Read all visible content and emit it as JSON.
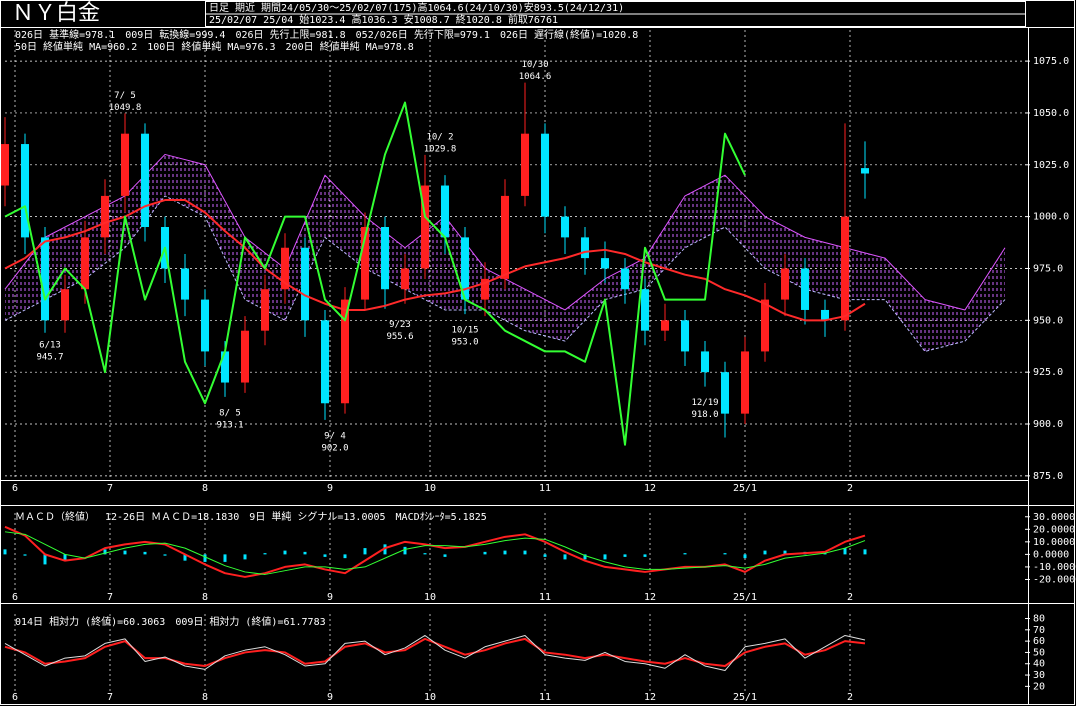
{
  "chart_data": [
    {
      "type": "candlestick",
      "title": "ＮＹ白金",
      "info": [
        "日足 期近 期間24/05/30～25/02/07(175)高1064.6(24/10/30)安893.5(24/12/31)",
        "25/02/07 25/04 始1023.4 高1036.3 安1008.7 終1020.8 前取76761"
      ],
      "legend": [
        {
          "text": "026日 基準線=978.1",
          "color": "#00ffff"
        },
        {
          "text": "009日 転換線=999.4",
          "color": "#ff3366"
        },
        {
          "text": "026日 先行上限=981.8",
          "color": "#ff44ff"
        },
        {
          "text": "052/026日 先行下限=979.1",
          "color": "#ff44ff"
        },
        {
          "text": "026日 遅行線(終値)=1020.8",
          "color": "#33ff33"
        },
        {
          "text": "50日 終値単純 MA=960.2",
          "color": "#ff3333"
        },
        {
          "text": "100日 終値単純 MA=976.3",
          "color": "#00ffff"
        },
        {
          "text": "200日 終値単純 MA=978.8",
          "color": "#33ff33"
        }
      ],
      "x": [
        0,
        4,
        8,
        12,
        16,
        20,
        24,
        28,
        32,
        36,
        40,
        44,
        48,
        52,
        56,
        60,
        64,
        68,
        72,
        76,
        80,
        84,
        88,
        92,
        96,
        100,
        104,
        108,
        112,
        116,
        120,
        124,
        128,
        132,
        136,
        140,
        144,
        148,
        152,
        156,
        160,
        164,
        168,
        172
      ],
      "open": [
        1015,
        1035,
        990,
        950,
        965,
        990,
        1010,
        1040,
        995,
        975,
        960,
        935,
        920,
        945,
        965,
        985,
        950,
        910,
        960,
        995,
        965,
        975,
        1015,
        990,
        960,
        970,
        1010,
        1040,
        1000,
        990,
        980,
        975,
        965,
        945,
        950,
        935,
        925,
        905,
        935,
        960,
        975,
        955,
        950,
        1023.4
      ],
      "high": [
        1048,
        1040,
        995,
        972,
        998,
        1018,
        1049.8,
        1045,
        1000,
        982,
        965,
        940,
        952,
        972,
        992,
        990,
        955,
        966,
        1002,
        1000,
        982,
        1029.8,
        1020,
        995,
        978,
        1018,
        1064.6,
        1045,
        1005,
        995,
        988,
        980,
        970,
        958,
        955,
        940,
        930,
        942,
        968,
        982,
        980,
        960,
        1045,
        1036.3
      ],
      "low": [
        1005,
        982,
        944,
        944,
        958,
        982,
        1002,
        988,
        968,
        952,
        928,
        913.1,
        915,
        938,
        958,
        942,
        902,
        905,
        955,
        955.6,
        958,
        970,
        982,
        953,
        952,
        965,
        1005,
        992,
        982,
        972,
        968,
        958,
        938,
        940,
        928,
        918,
        893.5,
        900,
        930,
        952,
        948,
        942,
        945,
        1008.7
      ],
      "close": [
        1035,
        990,
        950,
        965,
        990,
        1010,
        1040,
        995,
        975,
        960,
        935,
        920,
        945,
        965,
        985,
        950,
        910,
        960,
        995,
        965,
        975,
        1015,
        990,
        960,
        970,
        1010,
        1040,
        1000,
        990,
        980,
        975,
        965,
        945,
        950,
        935,
        925,
        905,
        935,
        960,
        975,
        955,
        950,
        1000,
        1020.8
      ],
      "up_color": "#ff2020",
      "down_color": "#00e5ff",
      "series": [
        {
          "color": "#ff2a2a",
          "width": 2,
          "values": [
            975,
            980,
            988,
            990,
            993,
            997,
            1000,
            1005,
            1008,
            1008,
            1002,
            993,
            985,
            975,
            968,
            962,
            958,
            955,
            955,
            957,
            960,
            962,
            963,
            965,
            968,
            972,
            976,
            978,
            980,
            983,
            984,
            982,
            978,
            975,
            972,
            970,
            965,
            962,
            958,
            953,
            950,
            950,
            952,
            958
          ]
        },
        {
          "color": "#33ff33",
          "width": 2,
          "values": [
            1000,
            1005,
            960,
            975,
            965,
            925,
            1000,
            960,
            985,
            930,
            910,
            935,
            990,
            975,
            1000,
            1000,
            960,
            950,
            990,
            1030,
            1055,
            1000,
            990,
            960,
            955,
            945,
            940,
            935,
            935,
            930,
            960,
            890,
            985,
            960,
            960,
            960,
            1040,
            1020,
            null,
            null,
            null,
            null,
            null,
            null
          ]
        }
      ],
      "cloud": {
        "x": [
          0,
          8,
          16,
          24,
          32,
          40,
          48,
          56,
          64,
          72,
          80,
          88,
          96,
          104,
          112,
          120,
          128,
          136,
          144,
          152,
          160,
          168,
          176,
          184,
          192,
          200
        ],
        "span_a": {
          "color": "#dd55ff",
          "values": [
            965,
            990,
            1000,
            1010,
            1030,
            1025,
            990,
            975,
            1020,
            1000,
            985,
            1000,
            975,
            965,
            955,
            970,
            980,
            1010,
            1020,
            1000,
            990,
            985,
            980,
            960,
            955,
            985
          ]
        },
        "span_b": {
          "color": "#bbbbff",
          "values": [
            950,
            960,
            970,
            985,
            1010,
            1000,
            960,
            950,
            990,
            975,
            965,
            955,
            955,
            945,
            940,
            960,
            965,
            985,
            995,
            975,
            965,
            960,
            960,
            935,
            940,
            960
          ]
        }
      },
      "annotations": [
        {
          "date": "6/13",
          "price": 945.7,
          "x": 9,
          "color": "#00ffff",
          "pos": "below"
        },
        {
          "date": "7/ 5",
          "price": 1049.8,
          "x": 24,
          "color": "#ff3333",
          "pos": "above"
        },
        {
          "date": "8/ 5",
          "price": 913.1,
          "x": 45,
          "color": "#00ffff",
          "pos": "below"
        },
        {
          "date": "9/ 4",
          "price": 902,
          "price_label": "902.0",
          "x": 66,
          "color": "#00ffff",
          "pos": "below"
        },
        {
          "date": "9/23",
          "price": 955.6,
          "x": 79,
          "color": "#00ffff",
          "pos": "below"
        },
        {
          "date": "10/ 2",
          "price": 1029.8,
          "x": 87,
          "color": "#ff3333",
          "pos": "above"
        },
        {
          "date": "10/15",
          "price": 953,
          "price_label": "953.0",
          "x": 92,
          "color": "#00ffff",
          "pos": "below"
        },
        {
          "date": "10/30",
          "price": 1064.6,
          "x": 106,
          "color": "#ff3333",
          "pos": "above"
        },
        {
          "date": "12/19",
          "price": 918,
          "price_label": "918.0",
          "x": 140,
          "color": "#00ffff",
          "pos": "below"
        }
      ],
      "xlim": [
        0,
        204
      ],
      "ylim": [
        873,
        1090
      ],
      "yticks": [
        {
          "value": 875,
          "label": "875.0"
        },
        {
          "value": 900,
          "label": "900.0"
        },
        {
          "value": 925,
          "label": "925.0"
        },
        {
          "value": 950,
          "label": "950.0"
        },
        {
          "value": 975,
          "label": "975.0"
        },
        {
          "value": 1000,
          "label": "1000.0"
        },
        {
          "value": 1025,
          "label": "1025.0"
        },
        {
          "value": 1050,
          "label": "1050.0"
        },
        {
          "value": 1075,
          "label": "1075.0"
        }
      ],
      "xticks": [
        {
          "value": 2,
          "label": "6"
        },
        {
          "value": 21,
          "label": "7"
        },
        {
          "value": 40,
          "label": "8"
        },
        {
          "value": 65,
          "label": "9"
        },
        {
          "value": 85,
          "label": "10"
        },
        {
          "value": 108,
          "label": "11"
        },
        {
          "value": 129,
          "label": "12"
        },
        {
          "value": 148,
          "label": "25/1"
        },
        {
          "value": 169,
          "label": "2"
        }
      ],
      "grid": true,
      "xgrid": true
    },
    {
      "type": "macd",
      "legend": [
        {
          "text": "ＭＡＣＤ（終値）",
          "color": "#ffffff"
        },
        {
          "text": "12-26日 ＭＡＣＤ=18.1830",
          "color": "#ff3333"
        },
        {
          "text": "9日 単純 シグナル=13.0005",
          "color": "#33ff33"
        },
        {
          "text": "MACDｵｼﾚｰﾀ=5.1825",
          "color": "#00ffff"
        }
      ],
      "x": [
        0,
        4,
        8,
        12,
        16,
        20,
        24,
        28,
        32,
        36,
        40,
        44,
        48,
        52,
        56,
        60,
        64,
        68,
        72,
        76,
        80,
        84,
        88,
        92,
        96,
        100,
        104,
        108,
        112,
        116,
        120,
        124,
        128,
        132,
        136,
        140,
        144,
        148,
        152,
        156,
        160,
        164,
        168,
        172
      ],
      "series": [
        {
          "color": "#ff2020",
          "width": 2,
          "values": [
            22,
            15,
            0,
            -5,
            -3,
            5,
            8,
            10,
            8,
            0,
            -8,
            -15,
            -18,
            -15,
            -10,
            -8,
            -12,
            -15,
            -5,
            5,
            10,
            8,
            5,
            6,
            10,
            14,
            16,
            10,
            2,
            -5,
            -10,
            -12,
            -14,
            -12,
            -10,
            -10,
            -8,
            -14,
            -5,
            0,
            1,
            2,
            10,
            15
          ]
        },
        {
          "color": "#33ff33",
          "width": 1,
          "values": [
            18,
            16,
            8,
            0,
            -3,
            1,
            5,
            8,
            9,
            5,
            -2,
            -9,
            -14,
            -16,
            -13,
            -10,
            -10,
            -12,
            -10,
            -3,
            4,
            7,
            7,
            6,
            8,
            11,
            13,
            12,
            6,
            -1,
            -6,
            -10,
            -12,
            -12,
            -11,
            -10,
            -9,
            -11,
            -8,
            -3,
            -1,
            1,
            5,
            11
          ]
        }
      ],
      "histogram": {
        "color": "#00e5ff",
        "values": [
          4,
          -1,
          -8,
          -5,
          0,
          4,
          3,
          2,
          -1,
          -5,
          -6,
          -6,
          -4,
          1,
          3,
          2,
          -2,
          -3,
          5,
          8,
          6,
          1,
          -2,
          0,
          2,
          3,
          3,
          -2,
          -4,
          -4,
          -4,
          -2,
          -2,
          0,
          1,
          0,
          1,
          -3,
          3,
          3,
          2,
          1,
          5,
          4
        ]
      },
      "xlim": [
        0,
        204
      ],
      "ylim": [
        -30,
        33
      ],
      "yticks": [
        {
          "value": 30,
          "label": "30.0000"
        },
        {
          "value": 20,
          "label": "20.0000"
        },
        {
          "value": 10,
          "label": "10.0000"
        },
        {
          "value": 0,
          "label": "0.0000"
        },
        {
          "value": -10,
          "label": "-10.0000"
        },
        {
          "value": -20,
          "label": "-20.0000"
        }
      ],
      "xticks": [
        {
          "value": 2,
          "label": "6"
        },
        {
          "value": 21,
          "label": "7"
        },
        {
          "value": 40,
          "label": "8"
        },
        {
          "value": 65,
          "label": "9"
        },
        {
          "value": 85,
          "label": "10"
        },
        {
          "value": 108,
          "label": "11"
        },
        {
          "value": 129,
          "label": "12"
        },
        {
          "value": 148,
          "label": "25/1"
        },
        {
          "value": 169,
          "label": "2"
        }
      ],
      "grid": false,
      "xgrid": true
    },
    {
      "type": "rsi",
      "legend": [
        {
          "text": "014日 相対力 (終値)=60.3063",
          "color": "#ff3333"
        },
        {
          "text": "009日 相対力 (終値)=61.7783",
          "color": "#ffffff"
        }
      ],
      "x": [
        0,
        4,
        8,
        12,
        16,
        20,
        24,
        28,
        32,
        36,
        40,
        44,
        48,
        52,
        56,
        60,
        64,
        68,
        72,
        76,
        80,
        84,
        88,
        92,
        96,
        100,
        104,
        108,
        112,
        116,
        120,
        124,
        128,
        132,
        136,
        140,
        144,
        148,
        152,
        156,
        160,
        164,
        168,
        172
      ],
      "series": [
        {
          "color": "#ff2020",
          "width": 2,
          "values": [
            55,
            50,
            40,
            42,
            45,
            55,
            60,
            45,
            45,
            40,
            38,
            45,
            50,
            52,
            50,
            40,
            42,
            55,
            58,
            50,
            52,
            62,
            55,
            48,
            52,
            58,
            62,
            50,
            48,
            45,
            48,
            45,
            42,
            40,
            45,
            40,
            38,
            50,
            55,
            58,
            48,
            52,
            60,
            58
          ]
        },
        {
          "color": "#dddddd",
          "width": 1,
          "values": [
            58,
            48,
            38,
            45,
            47,
            58,
            62,
            42,
            46,
            38,
            35,
            47,
            52,
            55,
            48,
            38,
            40,
            58,
            60,
            48,
            54,
            65,
            52,
            45,
            55,
            60,
            65,
            48,
            45,
            43,
            50,
            42,
            40,
            36,
            48,
            38,
            34,
            55,
            58,
            62,
            45,
            55,
            65,
            61
          ]
        }
      ],
      "xlim": [
        0,
        204
      ],
      "ylim": [
        15,
        84
      ],
      "yticks": [
        20,
        30,
        40,
        50,
        60,
        70,
        80
      ],
      "xticks": [
        {
          "value": 2,
          "label": "6"
        },
        {
          "value": 21,
          "label": "7"
        },
        {
          "value": 40,
          "label": "8"
        },
        {
          "value": 65,
          "label": "9"
        },
        {
          "value": 85,
          "label": "10"
        },
        {
          "value": 108,
          "label": "11"
        },
        {
          "value": 129,
          "label": "12"
        },
        {
          "value": 148,
          "label": "25/1"
        },
        {
          "value": 169,
          "label": "2"
        }
      ],
      "grid": false,
      "xgrid": true
    }
  ]
}
